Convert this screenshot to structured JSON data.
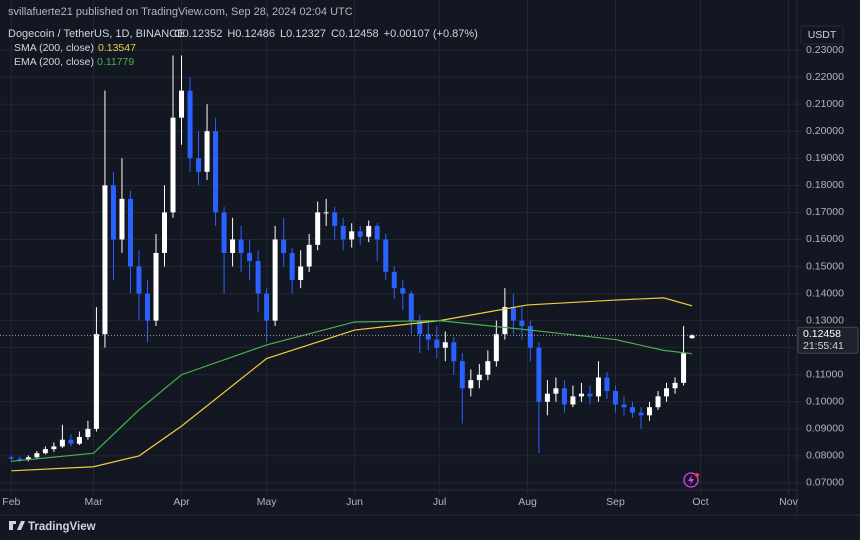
{
  "header": {
    "publisher": "svillafuerte21 published on TradingView.com, Sep 28, 2024 02:04 UTC",
    "symbol": "Dogecoin / TetherUS, 1D, BINANCE",
    "ohlc": [
      {
        "key": "O",
        "value": "0.12352"
      },
      {
        "key": "H",
        "value": "0.12486"
      },
      {
        "key": "L",
        "value": "0.12327"
      },
      {
        "key": "C",
        "value": "0.12458"
      }
    ],
    "change": "+0.00107 (+0.87%)"
  },
  "chart_data": {
    "type": "candlestick",
    "currency": "USDT",
    "up_color": "#ffffff",
    "down_color": "#2962ff",
    "x": [
      0,
      3,
      6,
      9,
      12,
      15,
      18,
      21,
      24,
      27,
      30,
      33,
      36,
      39,
      42,
      45,
      48,
      51,
      54,
      57,
      60,
      63,
      66,
      69,
      72,
      75,
      78,
      81,
      84,
      87,
      90,
      93,
      96,
      99,
      102,
      105,
      108,
      111,
      114,
      117,
      120,
      123,
      126,
      129,
      132,
      135,
      138,
      141,
      144,
      147,
      150,
      153,
      156,
      159,
      162,
      165,
      168,
      171,
      174,
      177,
      180,
      183,
      186,
      189,
      192,
      195,
      198,
      201,
      204,
      207,
      210,
      213,
      216,
      219,
      222,
      225,
      228,
      231,
      234,
      237,
      240
    ],
    "open": [
      0.0795,
      0.079,
      0.0785,
      0.0795,
      0.081,
      0.0825,
      0.0835,
      0.086,
      0.0845,
      0.087,
      0.09,
      0.125,
      0.18,
      0.16,
      0.175,
      0.15,
      0.14,
      0.13,
      0.155,
      0.17,
      0.205,
      0.215,
      0.19,
      0.185,
      0.2,
      0.17,
      0.155,
      0.16,
      0.155,
      0.152,
      0.14,
      0.13,
      0.16,
      0.155,
      0.145,
      0.15,
      0.158,
      0.17,
      0.17,
      0.165,
      0.16,
      0.163,
      0.161,
      0.165,
      0.16,
      0.148,
      0.142,
      0.14,
      0.13,
      0.125,
      0.123,
      0.12,
      0.122,
      0.115,
      0.105,
      0.108,
      0.11,
      0.115,
      0.125,
      0.135,
      0.13,
      0.128,
      0.12,
      0.1,
      0.103,
      0.105,
      0.099,
      0.102,
      0.103,
      0.102,
      0.109,
      0.104,
      0.099,
      0.098,
      0.096,
      0.095,
      0.098,
      0.102,
      0.105,
      0.107,
      0.12352
    ],
    "high": [
      0.08,
      0.0798,
      0.0802,
      0.0818,
      0.0835,
      0.085,
      0.0915,
      0.088,
      0.089,
      0.093,
      0.135,
      0.215,
      0.185,
      0.19,
      0.178,
      0.156,
      0.145,
      0.162,
      0.18,
      0.228,
      0.228,
      0.22,
      0.2,
      0.21,
      0.205,
      0.172,
      0.168,
      0.165,
      0.16,
      0.156,
      0.142,
      0.165,
      0.168,
      0.157,
      0.156,
      0.162,
      0.174,
      0.175,
      0.172,
      0.168,
      0.166,
      0.165,
      0.167,
      0.166,
      0.162,
      0.15,
      0.145,
      0.141,
      0.132,
      0.129,
      0.128,
      0.126,
      0.124,
      0.118,
      0.112,
      0.114,
      0.119,
      0.13,
      0.142,
      0.14,
      0.135,
      0.13,
      0.122,
      0.108,
      0.109,
      0.108,
      0.106,
      0.107,
      0.106,
      0.115,
      0.111,
      0.106,
      0.102,
      0.1,
      0.098,
      0.1,
      0.104,
      0.107,
      0.109,
      0.128,
      0.12486
    ],
    "low": [
      0.078,
      0.0778,
      0.078,
      0.079,
      0.0805,
      0.0815,
      0.083,
      0.0835,
      0.084,
      0.086,
      0.089,
      0.12,
      0.145,
      0.155,
      0.14,
      0.13,
      0.122,
      0.128,
      0.15,
      0.168,
      0.195,
      0.185,
      0.18,
      0.182,
      0.165,
      0.14,
      0.15,
      0.148,
      0.145,
      0.133,
      0.122,
      0.128,
      0.15,
      0.14,
      0.142,
      0.148,
      0.156,
      0.165,
      0.16,
      0.156,
      0.157,
      0.158,
      0.159,
      0.152,
      0.145,
      0.138,
      0.134,
      0.125,
      0.118,
      0.119,
      0.116,
      0.115,
      0.11,
      0.092,
      0.102,
      0.105,
      0.108,
      0.113,
      0.123,
      0.125,
      0.123,
      0.115,
      0.081,
      0.095,
      0.1,
      0.096,
      0.098,
      0.1,
      0.099,
      0.1,
      0.101,
      0.096,
      0.095,
      0.094,
      0.09,
      0.093,
      0.097,
      0.1,
      0.103,
      0.106,
      0.12327
    ],
    "close": [
      0.079,
      0.0785,
      0.0795,
      0.081,
      0.0825,
      0.0835,
      0.086,
      0.0845,
      0.087,
      0.09,
      0.125,
      0.18,
      0.16,
      0.175,
      0.15,
      0.14,
      0.13,
      0.155,
      0.17,
      0.205,
      0.215,
      0.19,
      0.185,
      0.2,
      0.17,
      0.155,
      0.16,
      0.155,
      0.152,
      0.14,
      0.13,
      0.16,
      0.155,
      0.145,
      0.15,
      0.158,
      0.17,
      0.17,
      0.165,
      0.16,
      0.163,
      0.161,
      0.165,
      0.16,
      0.148,
      0.142,
      0.14,
      0.13,
      0.125,
      0.123,
      0.12,
      0.122,
      0.115,
      0.105,
      0.108,
      0.11,
      0.115,
      0.125,
      0.135,
      0.13,
      0.128,
      0.12,
      0.1,
      0.103,
      0.105,
      0.099,
      0.102,
      0.103,
      0.102,
      0.109,
      0.104,
      0.099,
      0.098,
      0.096,
      0.095,
      0.098,
      0.102,
      0.105,
      0.107,
      0.118,
      0.12458
    ],
    "lines": [
      {
        "name": "SMA (200, close)",
        "value_label": "0.13547",
        "color": "#f0cd3f",
        "x": [
          0,
          29,
          45,
          60,
          90,
          121,
          151,
          182,
          213,
          230,
          240
        ],
        "values": [
          0.0745,
          0.076,
          0.08,
          0.091,
          0.116,
          0.1265,
          0.13,
          0.1358,
          0.1376,
          0.1384,
          0.13547
        ]
      },
      {
        "name": "EMA (200, close)",
        "value_label": "0.11779",
        "color": "#4caf50",
        "x": [
          0,
          29,
          45,
          60,
          90,
          121,
          151,
          182,
          213,
          230,
          240
        ],
        "values": [
          0.078,
          0.081,
          0.097,
          0.11,
          0.121,
          0.1295,
          0.13,
          0.1266,
          0.123,
          0.119,
          0.11779
        ]
      }
    ],
    "last_price_label": "0.12458",
    "countdown": "21:55:41",
    "xlim": [
      -4,
      277
    ],
    "ylim": [
      0.0674,
      0.2485
    ],
    "xticks": [
      {
        "value": 0,
        "label": "Feb"
      },
      {
        "value": 29,
        "label": "Mar"
      },
      {
        "value": 60,
        "label": "Apr"
      },
      {
        "value": 90,
        "label": "May"
      },
      {
        "value": 121,
        "label": "Jun"
      },
      {
        "value": 151,
        "label": "Jul"
      },
      {
        "value": 182,
        "label": "Aug"
      },
      {
        "value": 213,
        "label": "Sep"
      },
      {
        "value": 243,
        "label": "Oct"
      },
      {
        "value": 274,
        "label": "Nov"
      }
    ],
    "yticks": [
      {
        "value": 0.07,
        "label": "0.07000"
      },
      {
        "value": 0.08,
        "label": "0.08000"
      },
      {
        "value": 0.09,
        "label": "0.09000"
      },
      {
        "value": 0.1,
        "label": "0.10000"
      },
      {
        "value": 0.11,
        "label": "0.11000"
      },
      {
        "value": 0.12,
        "label": "0.12000"
      },
      {
        "value": 0.13,
        "label": "0.13000"
      },
      {
        "value": 0.14,
        "label": "0.14000"
      },
      {
        "value": 0.15,
        "label": "0.15000"
      },
      {
        "value": 0.16,
        "label": "0.16000"
      },
      {
        "value": 0.17,
        "label": "0.17000"
      },
      {
        "value": 0.18,
        "label": "0.18000"
      },
      {
        "value": 0.19,
        "label": "0.19000"
      },
      {
        "value": 0.2,
        "label": "0.20000"
      },
      {
        "value": 0.21,
        "label": "0.21000"
      },
      {
        "value": 0.22,
        "label": "0.22000"
      },
      {
        "value": 0.23,
        "label": "0.23000"
      }
    ],
    "grid": true
  },
  "footer": {
    "brand": "TradingView"
  }
}
